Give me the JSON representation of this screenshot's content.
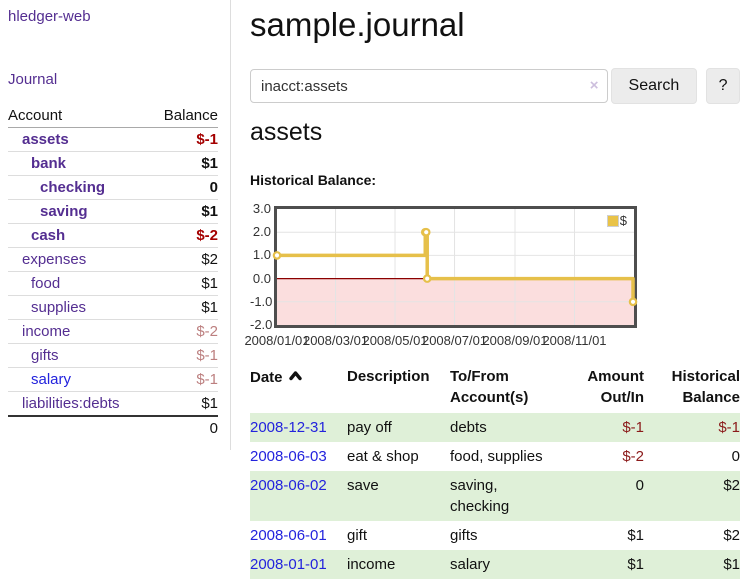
{
  "app": {
    "title": "hledger-web",
    "nav": {
      "journal": "Journal"
    }
  },
  "sidebar": {
    "header": {
      "account": "Account",
      "balance": "Balance"
    },
    "accounts": [
      {
        "name": "assets",
        "depth": 1,
        "bold": true,
        "link_color": "purple",
        "balance": "$-1",
        "balance_style": "neg-strong"
      },
      {
        "name": "bank",
        "depth": 2,
        "bold": true,
        "link_color": "purple",
        "balance": "$1",
        "balance_style": "pos"
      },
      {
        "name": "checking",
        "depth": 3,
        "bold": true,
        "link_color": "purple",
        "balance": "0",
        "balance_style": "pos"
      },
      {
        "name": "saving",
        "depth": 3,
        "bold": true,
        "link_color": "purple",
        "balance": "$1",
        "balance_style": "pos"
      },
      {
        "name": "cash",
        "depth": 2,
        "bold": true,
        "link_color": "purple",
        "balance": "$-2",
        "balance_style": "neg-strong"
      },
      {
        "name": "expenses",
        "depth": 1,
        "bold": false,
        "link_color": "purple",
        "balance": "$2",
        "balance_style": "pos"
      },
      {
        "name": "food",
        "depth": 2,
        "bold": false,
        "link_color": "purple",
        "balance": "$1",
        "balance_style": "pos"
      },
      {
        "name": "supplies",
        "depth": 2,
        "bold": false,
        "link_color": "purple",
        "balance": "$1",
        "balance_style": "pos"
      },
      {
        "name": "income",
        "depth": 1,
        "bold": false,
        "link_color": "purple",
        "balance": "$-2",
        "balance_style": "neg-muted"
      },
      {
        "name": "gifts",
        "depth": 2,
        "bold": false,
        "link_color": "purple",
        "balance": "$-1",
        "balance_style": "neg-muted"
      },
      {
        "name": "salary",
        "depth": 2,
        "bold": false,
        "link_color": "blue",
        "balance": "$-1",
        "balance_style": "neg-muted"
      },
      {
        "name": "liabilities:debts",
        "depth": 1,
        "bold": false,
        "link_color": "purple",
        "balance": "$1",
        "balance_style": "pos"
      }
    ],
    "total": "0"
  },
  "main": {
    "title": "sample.journal",
    "search": {
      "value": "inacct:assets",
      "clear": "×",
      "button_label": "Search",
      "help_label": "?"
    },
    "account": {
      "heading": "assets",
      "chart_label": "Historical Balance:"
    }
  },
  "chart_data": {
    "type": "line",
    "step": true,
    "title": "Historical Balance",
    "series_label": "$",
    "series": [
      {
        "name": "$",
        "points": [
          [
            "2008-01-01",
            1
          ],
          [
            "2008-06-01",
            2
          ],
          [
            "2008-06-02",
            2
          ],
          [
            "2008-06-03",
            0
          ],
          [
            "2008-12-31",
            -1
          ]
        ]
      }
    ],
    "xlim": [
      "2008-01-01",
      "2009-01-01"
    ],
    "ylim": [
      -2,
      3
    ],
    "y_ticks": [
      "3.0",
      "2.0",
      "1.0",
      "0.0",
      "-1.0",
      "-2.0"
    ],
    "x_ticks": [
      "2008/01/01",
      "2008/03/01",
      "2008/05/01",
      "2008/07/01",
      "2008/09/01",
      "2008/11/01"
    ],
    "legend_position": "top-right",
    "grid": true,
    "colors": {
      "line": "#e6c04a",
      "point_fill": "#ffffff",
      "negative_region": "#fbdede",
      "zero_line": "#8b0000",
      "grid": "#e4e4e4",
      "border": "#4e4e4e"
    }
  },
  "register": {
    "headers": {
      "date": "Date",
      "description": "Description",
      "accounts": "To/From\nAccount(s)",
      "amount": "Amount\nOut/In",
      "balance": "Historical\nBalance"
    },
    "rows": [
      {
        "date": "2008-12-31",
        "description": "pay off",
        "accounts": "debts",
        "amount": "$-1",
        "amount_neg": true,
        "balance": "$-1",
        "balance_neg": true
      },
      {
        "date": "2008-06-03",
        "description": "eat & shop",
        "accounts": "food, supplies",
        "amount": "$-2",
        "amount_neg": true,
        "balance": "0",
        "balance_neg": false
      },
      {
        "date": "2008-06-02",
        "description": "save",
        "accounts": "saving,\nchecking",
        "amount": "0",
        "amount_neg": false,
        "balance": "$2",
        "balance_neg": false
      },
      {
        "date": "2008-06-01",
        "description": "gift",
        "accounts": "gifts",
        "amount": "$1",
        "amount_neg": false,
        "balance": "$2",
        "balance_neg": false
      },
      {
        "date": "2008-01-01",
        "description": "income",
        "accounts": "salary",
        "amount": "$1",
        "amount_neg": false,
        "balance": "$1",
        "balance_neg": false
      }
    ]
  }
}
